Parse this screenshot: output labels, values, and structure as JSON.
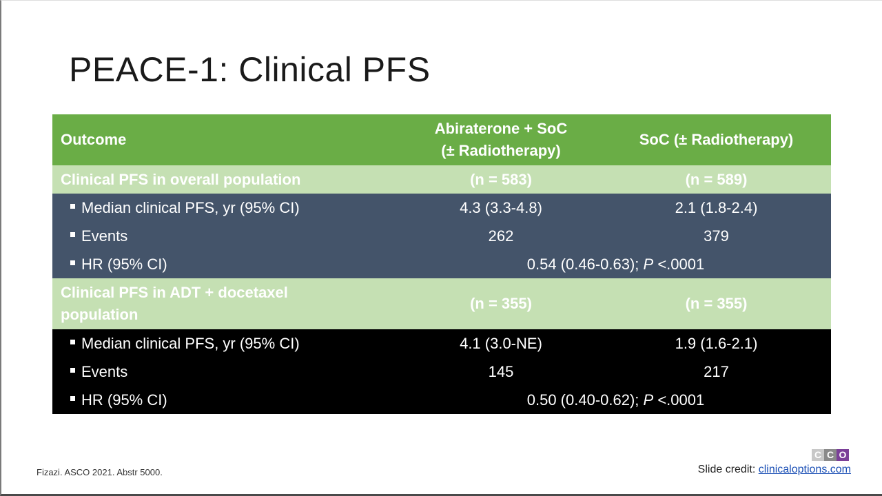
{
  "slide": {
    "title": "PEACE-1: Clinical PFS",
    "reference": "Fizazi. ASCO 2021. Abstr 5000.",
    "credit_label": "Slide credit: ",
    "credit_link": "clinicaloptions.com",
    "logo_letters": [
      "C",
      "C",
      "O"
    ]
  },
  "table": {
    "header": {
      "outcome": "Outcome",
      "col1_line1": "Abiraterone + SoC",
      "col1_line2": "(± Radiotherapy)",
      "col2": "SoC (± Radiotherapy)"
    },
    "section1": {
      "label": "Clinical PFS in overall population",
      "n1": "(n = 583)",
      "n2": "(n = 589)",
      "rows": [
        {
          "label": "Median clinical PFS, yr (95% CI)",
          "v1": "4.3 (3.3-4.8)",
          "v2": "2.1 (1.8-2.4)"
        },
        {
          "label": "Events",
          "v1": "262",
          "v2": "379"
        }
      ],
      "hr_label": "HR (95% CI)",
      "hr_value": "0.54 (0.46-0.63); ",
      "hr_p_label": "P",
      "hr_p_value": " <.0001"
    },
    "section2": {
      "label_line1": "Clinical PFS in ADT + docetaxel",
      "label_line2": "population",
      "n1": "(n = 355)",
      "n2": "(n = 355)",
      "rows": [
        {
          "label": "Median clinical PFS, yr (95% CI)",
          "v1": "4.1 (3.0-NE)",
          "v2": "1.9 (1.6-2.1)"
        },
        {
          "label": "Events",
          "v1": "145",
          "v2": "217"
        }
      ],
      "hr_label": "HR (95% CI)",
      "hr_value": "0.50 (0.40-0.62); ",
      "hr_p_label": "P",
      "hr_p_value": " <.0001"
    }
  }
}
